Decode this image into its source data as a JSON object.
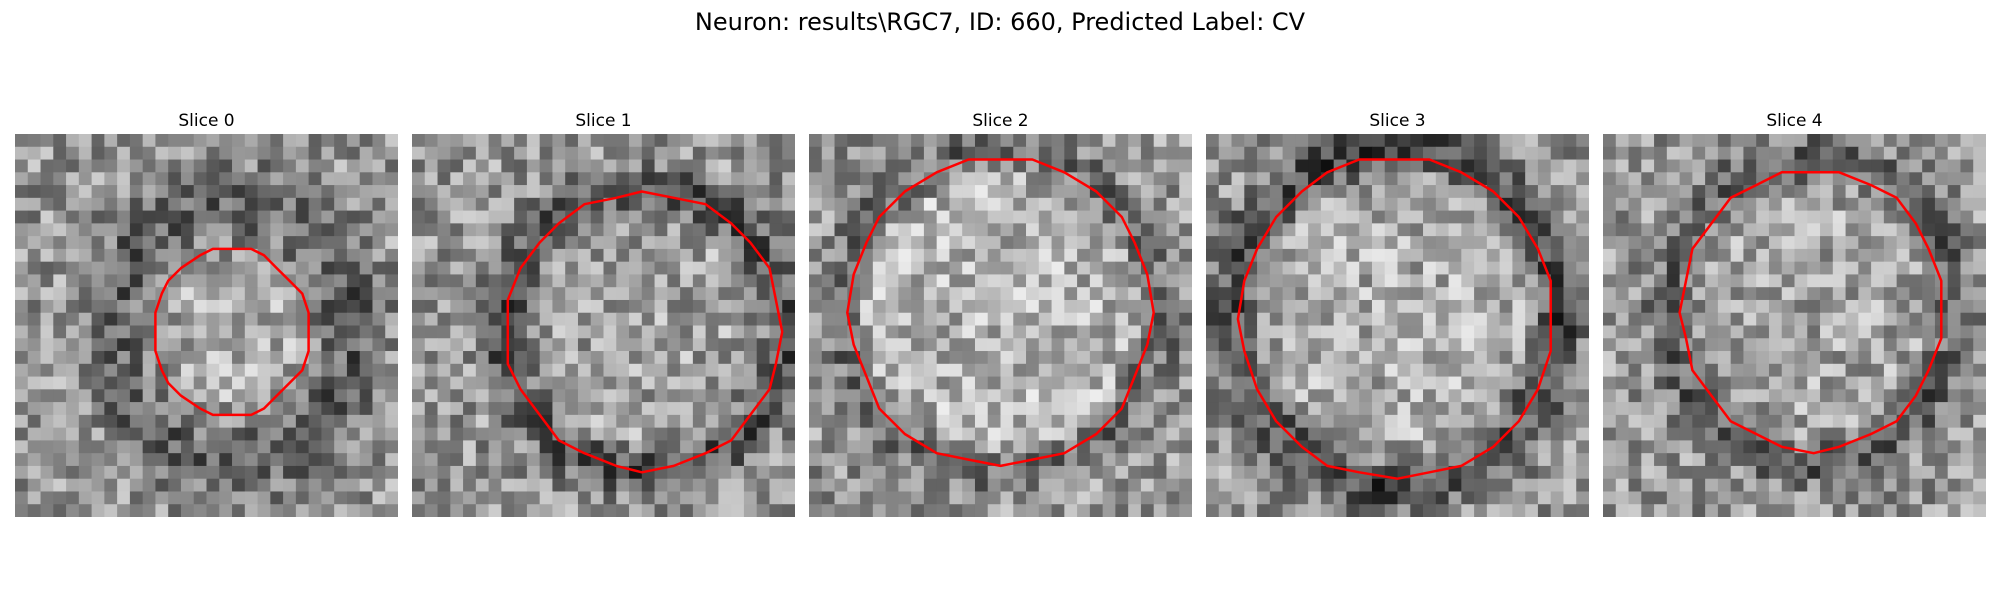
{
  "figure": {
    "title": "Neuron: results\\RGC7, ID: 660, Predicted Label: CV"
  },
  "panels": [
    {
      "title": "Slice 0"
    },
    {
      "title": "Slice 1"
    },
    {
      "title": "Slice 2"
    },
    {
      "title": "Slice 3"
    },
    {
      "title": "Slice 4"
    }
  ],
  "colors": {
    "contour": "#ff0000",
    "colormap": "gray"
  }
}
